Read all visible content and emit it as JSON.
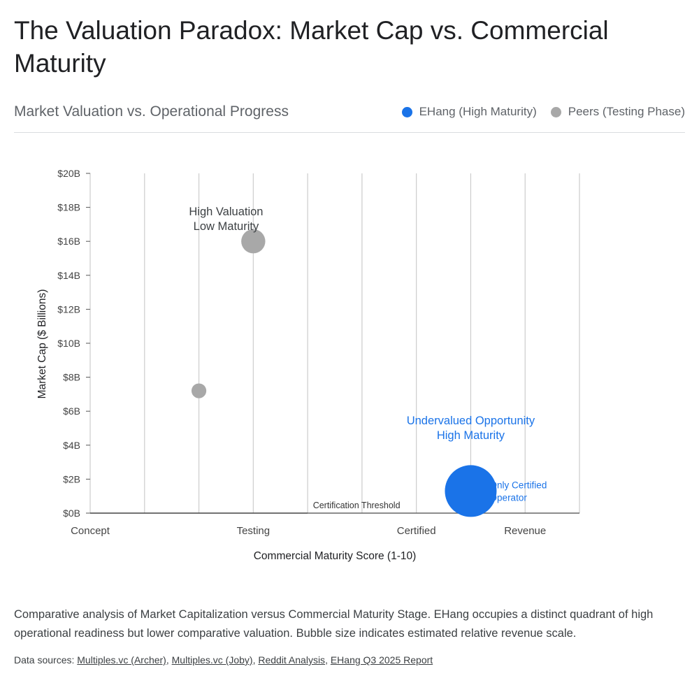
{
  "title": "The Valuation Paradox: Market Cap vs. Commercial Maturity",
  "chart_subtitle": "Market Valuation vs. Operational Progress",
  "legend": [
    {
      "label": "EHang (High Maturity)",
      "color": "#1a73e8"
    },
    {
      "label": "Peers (Testing Phase)",
      "color": "#a8a8a8"
    }
  ],
  "chart_data": {
    "type": "scatter",
    "xlabel": "Commercial Maturity Score (1-10)",
    "ylabel": "Market Cap ($ Billions)",
    "xlim": [
      1,
      10
    ],
    "ylim": [
      0,
      20
    ],
    "x_ticks": [
      {
        "x": 1,
        "label": "Concept"
      },
      {
        "x": 4,
        "label": "Testing"
      },
      {
        "x": 7,
        "label": "Certified"
      },
      {
        "x": 9,
        "label": "Revenue"
      }
    ],
    "y_ticks": [
      {
        "y": 0,
        "label": "$0B"
      },
      {
        "y": 2,
        "label": "$2B"
      },
      {
        "y": 4,
        "label": "$4B"
      },
      {
        "y": 6,
        "label": "$6B"
      },
      {
        "y": 8,
        "label": "$8B"
      },
      {
        "y": 10,
        "label": "$10B"
      },
      {
        "y": 12,
        "label": "$12B"
      },
      {
        "y": 14,
        "label": "$14B"
      },
      {
        "y": 16,
        "label": "$16B"
      },
      {
        "y": 18,
        "label": "$18B"
      },
      {
        "y": 20,
        "label": "$20B"
      }
    ],
    "vertical_gridlines": true,
    "horizontal_gridlines": false,
    "series": [
      {
        "name": "EHang (High Maturity)",
        "color": "#1a73e8",
        "points": [
          {
            "x": 8,
            "y": 1.3,
            "size": 10
          }
        ]
      },
      {
        "name": "Peers (Testing Phase)",
        "color": "#a8a8a8",
        "points": [
          {
            "x": 4,
            "y": 16,
            "size": 4
          },
          {
            "x": 3,
            "y": 7.2,
            "size": 2
          }
        ]
      }
    ],
    "threshold": {
      "y": 0,
      "x_from": 1,
      "x_to": 5,
      "label": "Certification Threshold",
      "label_x": 5.9
    },
    "annotations": [
      {
        "lines": [
          "High Valuation",
          "Low Maturity"
        ],
        "x": 3.5,
        "y": 17.3,
        "color": "#3c4043"
      },
      {
        "lines": [
          "Undervalued Opportunity",
          "High Maturity"
        ],
        "x": 8,
        "y": 5,
        "color": "#1a73e8"
      },
      {
        "lines": [
          "Only Certified",
          "Operator"
        ],
        "x": 8.4,
        "y": 1.3,
        "color": "#1a73e8"
      }
    ]
  },
  "caption": "Comparative analysis of Market Capitalization versus Commercial Maturity Stage. EHang occupies a distinct quadrant of high operational readiness but lower comparative valuation. Bubble size indicates estimated relative revenue scale.",
  "sources": {
    "prefix": "Data sources:",
    "links": [
      "Multiples.vc (Archer)",
      "Multiples.vc (Joby)",
      "Reddit Analysis",
      "EHang Q3 2025 Report"
    ]
  }
}
